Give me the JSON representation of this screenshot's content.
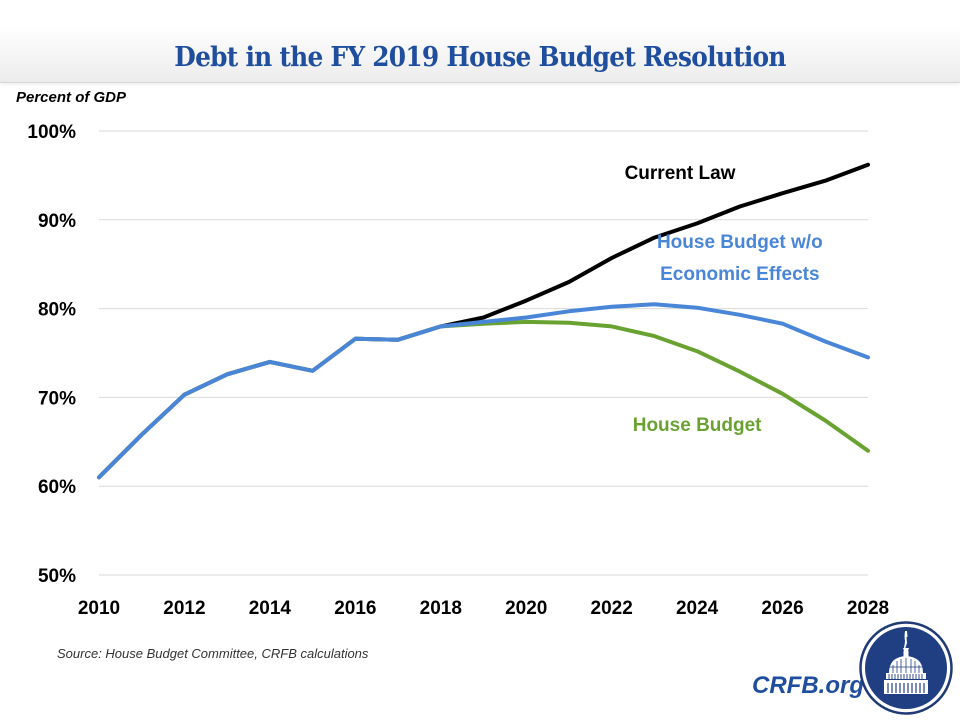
{
  "header": {
    "title": "Debt in the FY 2019 House Budget Resolution"
  },
  "footer": {
    "source": "Source: House Budget Committee, CRFB calculations",
    "brand": "CRFB.org",
    "logo_icon": "capitol-dome-logo"
  },
  "colors": {
    "title": "#1f4e9e",
    "current_law": "#000000",
    "house_budget_wo": "#4a86d8",
    "house_budget": "#6aa232",
    "grid": "#d9d9d9",
    "brand": "#1f4e9e",
    "logo_fill": "#1f3f82"
  },
  "chart_data": {
    "type": "line",
    "title": "Debt in the FY 2019 House Budget Resolution",
    "xlabel": "",
    "ylabel": "Percent of GDP",
    "x": [
      2010,
      2011,
      2012,
      2013,
      2014,
      2015,
      2016,
      2017,
      2018,
      2019,
      2020,
      2021,
      2022,
      2023,
      2024,
      2025,
      2026,
      2027,
      2028
    ],
    "xlim": [
      2010,
      2028
    ],
    "ylim": [
      50,
      100
    ],
    "x_ticks": [
      "2010",
      "2012",
      "2014",
      "2016",
      "2018",
      "2020",
      "2022",
      "2024",
      "2026",
      "2028"
    ],
    "x_tick_values": [
      2010,
      2012,
      2014,
      2016,
      2018,
      2020,
      2022,
      2024,
      2026,
      2028
    ],
    "y_ticks": [
      "50%",
      "60%",
      "70%",
      "80%",
      "90%",
      "100%"
    ],
    "y_tick_values": [
      50,
      60,
      70,
      80,
      90,
      100
    ],
    "grid": true,
    "legend": "inline-labels",
    "series": [
      {
        "name": "Current Law",
        "key": "current_law",
        "label_lines": [
          "Current Law"
        ],
        "values": [
          61.0,
          65.8,
          70.3,
          72.6,
          74.0,
          73.0,
          76.6,
          76.5,
          78.0,
          79.0,
          80.9,
          83.0,
          85.7,
          88.0,
          89.6,
          91.5,
          93.0,
          94.4,
          96.2
        ]
      },
      {
        "name": "House Budget w/o Economic Effects",
        "key": "house_budget_wo",
        "label_lines": [
          "House Budget w/o",
          "Economic Effects"
        ],
        "values": [
          61.0,
          65.8,
          70.3,
          72.6,
          74.0,
          73.0,
          76.6,
          76.5,
          78.0,
          78.5,
          79.0,
          79.7,
          80.2,
          80.5,
          80.1,
          79.3,
          78.3,
          76.3,
          74.5
        ]
      },
      {
        "name": "House Budget",
        "key": "house_budget",
        "label_lines": [
          "House Budget"
        ],
        "values": [
          61.0,
          65.8,
          70.3,
          72.6,
          74.0,
          73.0,
          76.6,
          76.5,
          78.0,
          78.3,
          78.5,
          78.4,
          78.0,
          76.9,
          75.2,
          72.9,
          70.4,
          67.4,
          64.0
        ]
      }
    ]
  }
}
